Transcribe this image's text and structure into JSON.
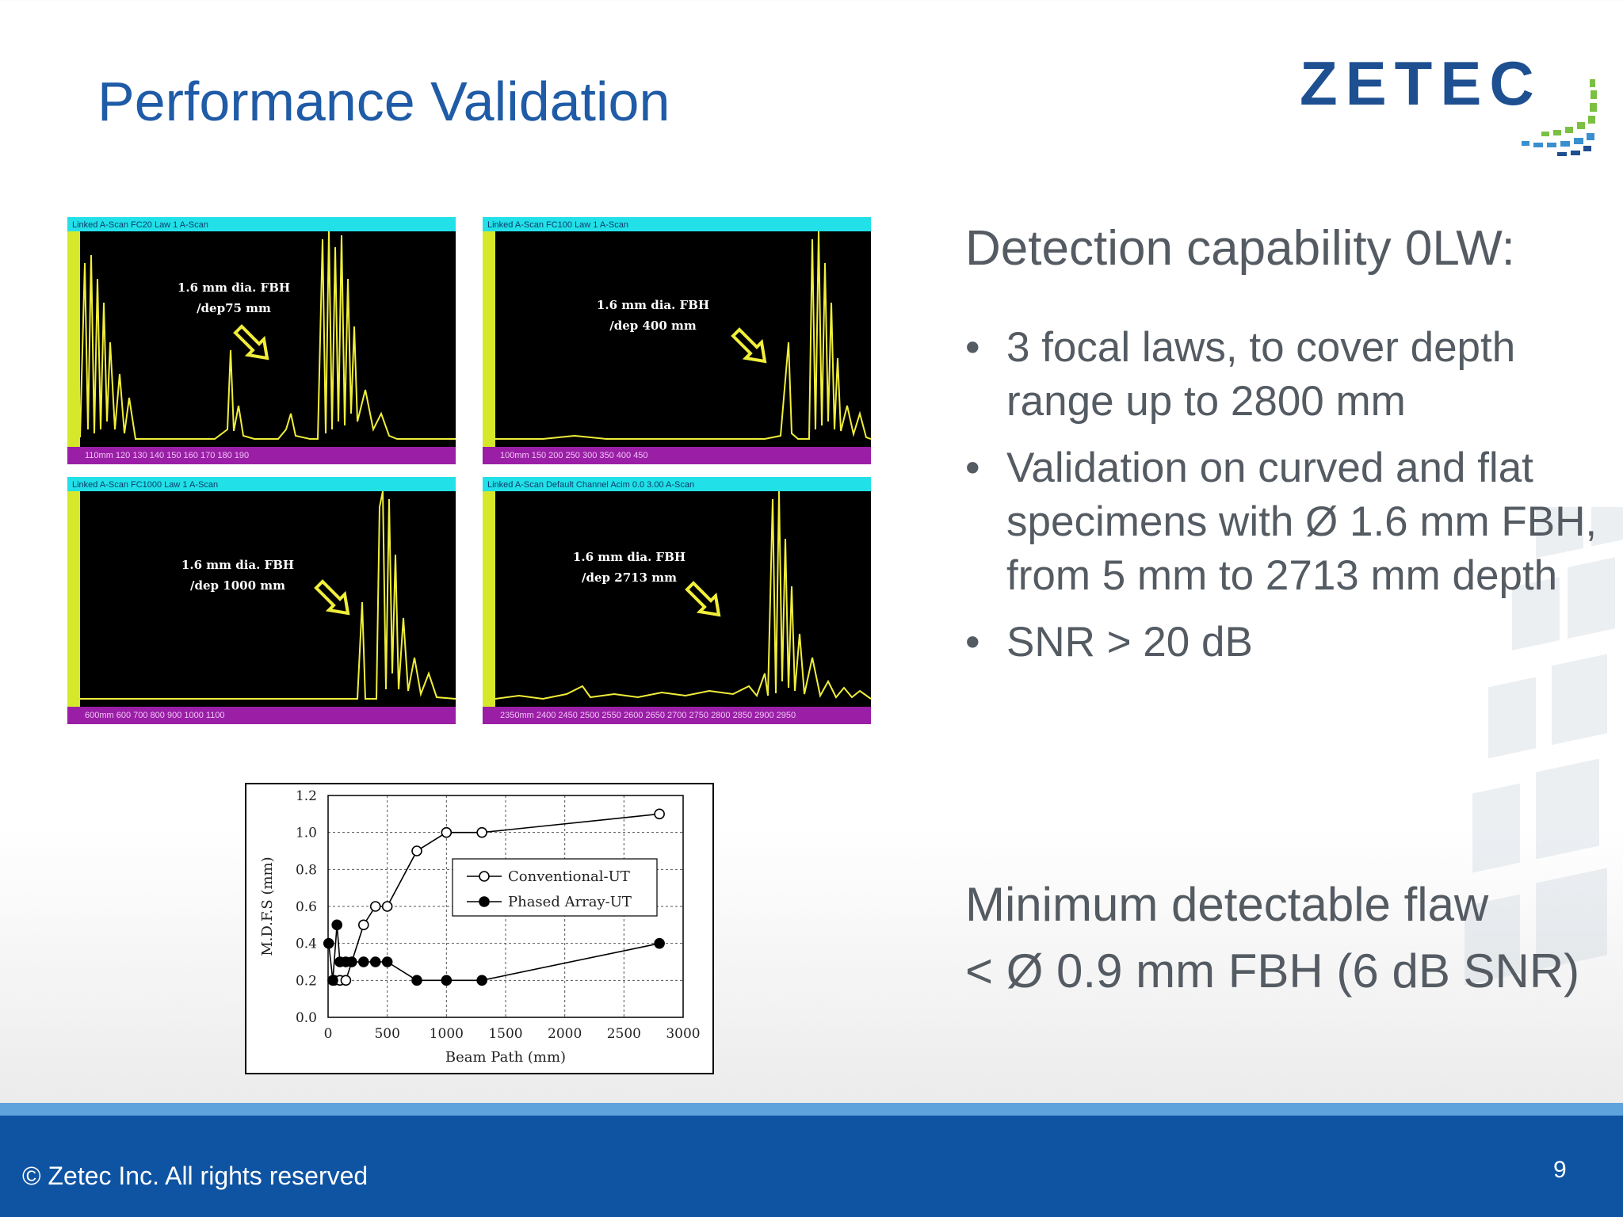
{
  "title": "Performance Validation",
  "logo": {
    "text": "ZETEC",
    "accent": "#1d4f91"
  },
  "ascans": [
    {
      "title": "Linked A-Scan FC20 Law 1 A-Scan",
      "label1": "1.6 mm dia. FBH",
      "label2": "/dep75 mm",
      "axis": "110mm 120 130 140 150 160 170 180 190"
    },
    {
      "title": "Linked A-Scan FC100 Law 1 A-Scan",
      "label1": "1.6 mm dia. FBH",
      "label2": "/dep 400 mm",
      "axis": "100mm 150 200 250 300 350 400 450"
    },
    {
      "title": "Linked A-Scan FC1000 Law 1 A-Scan",
      "label1": "1.6 mm dia. FBH",
      "label2": "/dep 1000 mm",
      "axis": "600mm 600 700 800 900 1000 1100"
    },
    {
      "title": "Linked A-Scan Default Channel Acim 0.0 3.00 A-Scan",
      "label1": "1.6 mm dia. FBH",
      "label2": "/dep 2713 mm",
      "axis": "2350mm 2400 2450 2500 2550 2600 2650 2700 2750 2800 2850 2900 2950"
    }
  ],
  "right": {
    "heading": "Detection capability 0LW:",
    "bullets": [
      "3 focal laws, to cover depth range up to 2800 mm",
      "Validation on curved and flat specimens with Ø 1.6 mm FBH, from 5 mm to 2713 mm depth",
      "SNR > 20 dB"
    ],
    "bullet_char": "•",
    "min_flaw_line1": "Minimum detectable flaw",
    "min_flaw_line2": "< Ø 0.9 mm FBH (6 dB SNR)"
  },
  "footer": {
    "copyright": "© Zetec Inc. All rights reserved",
    "page": "9",
    "color": "#0f54a3"
  },
  "chart_data": {
    "type": "line",
    "xlabel": "Beam Path (mm)",
    "ylabel": "M.D.F.S (mm)",
    "xlim": [
      0,
      3000
    ],
    "ylim": [
      0,
      1.2
    ],
    "xticks": [
      0,
      500,
      1000,
      1500,
      2000,
      2500,
      3000
    ],
    "yticks": [
      0.0,
      0.2,
      0.4,
      0.6,
      0.8,
      1.0,
      1.2
    ],
    "ytick_labels": [
      "0.0",
      "0.2",
      "0.4",
      "0.6",
      "0.8",
      "1.0",
      "1.2"
    ],
    "grid": true,
    "legend_position": "center-right",
    "series": [
      {
        "name": "Conventional-UT",
        "marker": "open-circle",
        "x": [
          50,
          100,
          150,
          300,
          400,
          500,
          750,
          1000,
          1300,
          2800
        ],
        "y": [
          0.2,
          0.2,
          0.2,
          0.5,
          0.6,
          0.6,
          0.9,
          1.0,
          1.0,
          1.1
        ]
      },
      {
        "name": "Phased Array-UT",
        "marker": "filled-circle",
        "x": [
          5,
          40,
          75,
          100,
          150,
          200,
          300,
          400,
          500,
          750,
          1000,
          1300,
          2800
        ],
        "y": [
          0.4,
          0.2,
          0.5,
          0.3,
          0.3,
          0.3,
          0.3,
          0.3,
          0.3,
          0.2,
          0.2,
          0.2,
          0.4
        ]
      }
    ]
  }
}
